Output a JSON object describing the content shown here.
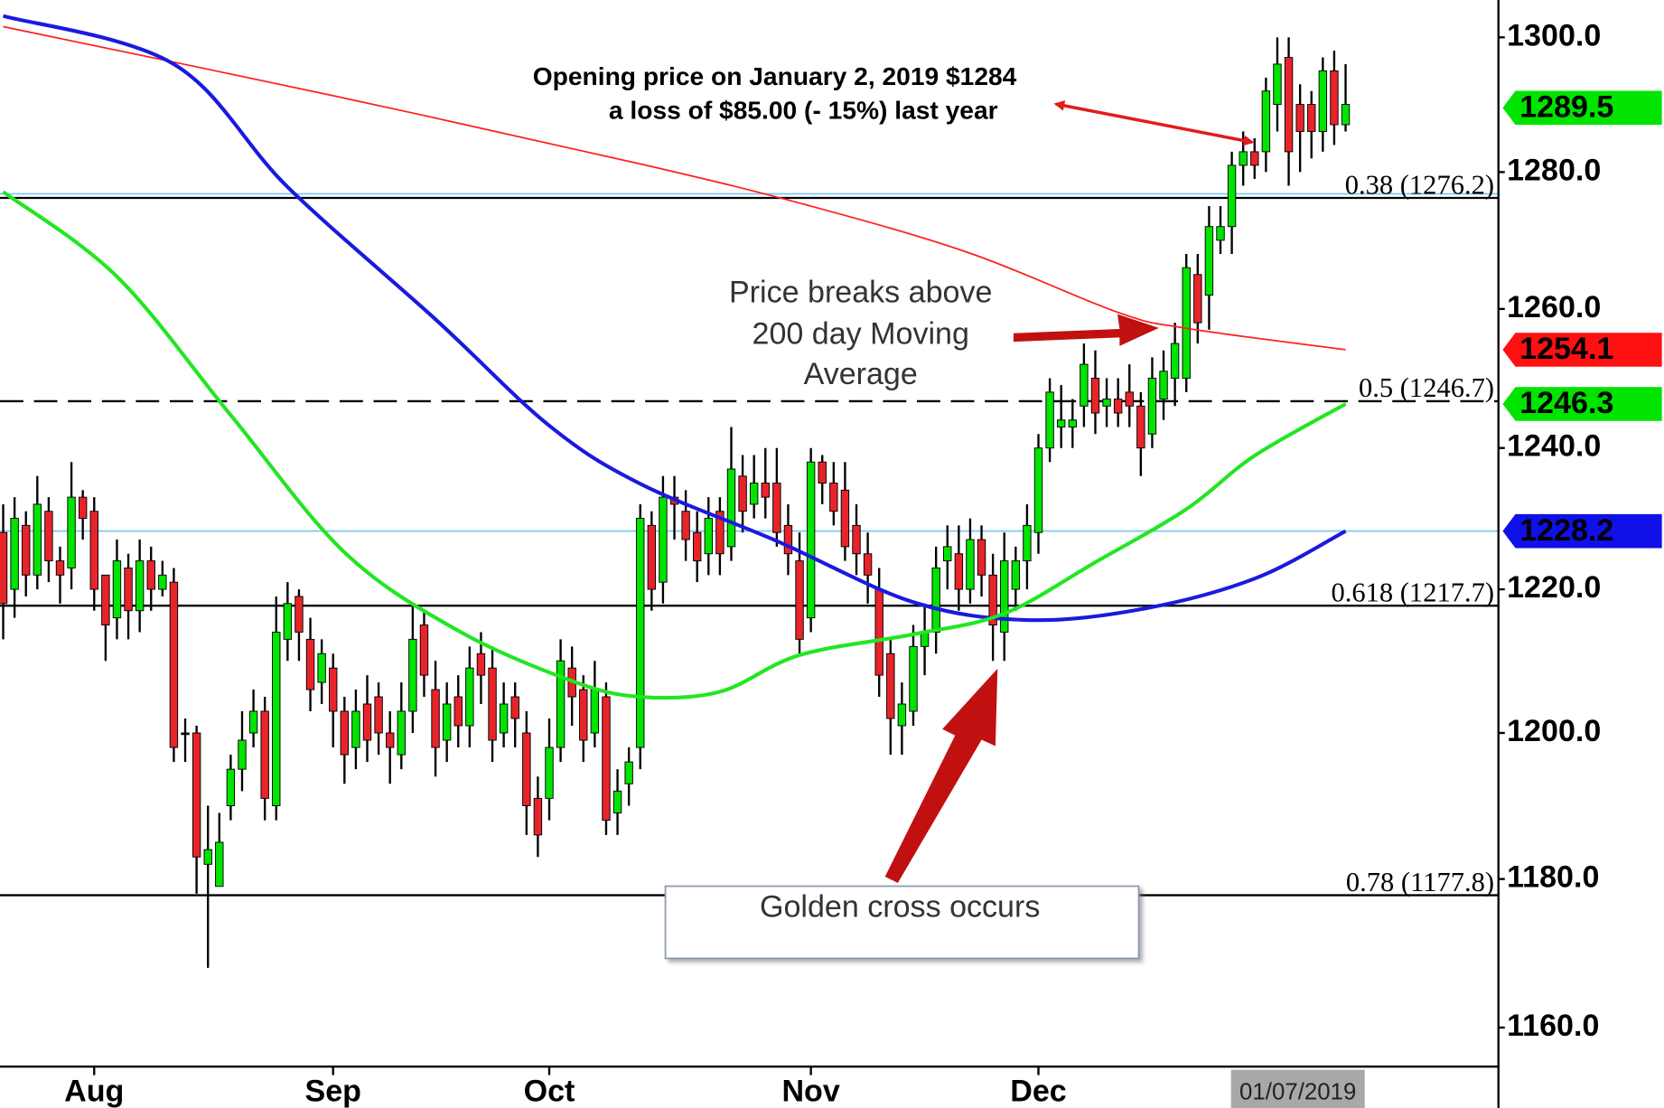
{
  "chart_data": {
    "type": "candlestick",
    "log_scale": true,
    "ylim": [
      1154.8,
      1305.6
    ],
    "yticks": [
      {
        "value": 1160,
        "label": "1160.0"
      },
      {
        "value": 1180,
        "label": "1180.0"
      },
      {
        "value": 1200,
        "label": "1200.0"
      },
      {
        "value": 1220,
        "label": "1220.0"
      },
      {
        "value": 1240,
        "label": "1240.0"
      },
      {
        "value": 1260,
        "label": "1260.0"
      },
      {
        "value": 1280,
        "label": "1280.0"
      },
      {
        "value": 1300,
        "label": "1300.0"
      }
    ],
    "categories": [
      null,
      null,
      null,
      null,
      null,
      null,
      null,
      null,
      "Aug",
      null,
      null,
      null,
      null,
      null,
      null,
      null,
      null,
      null,
      null,
      null,
      null,
      null,
      null,
      null,
      null,
      null,
      null,
      null,
      null,
      "Sep",
      null,
      null,
      null,
      null,
      null,
      null,
      null,
      null,
      null,
      null,
      null,
      null,
      null,
      null,
      null,
      null,
      null,
      null,
      "Oct",
      null,
      null,
      null,
      null,
      null,
      null,
      null,
      null,
      null,
      null,
      null,
      null,
      null,
      null,
      null,
      null,
      null,
      null,
      null,
      null,
      null,
      null,
      "Nov",
      null,
      null,
      null,
      null,
      null,
      null,
      null,
      null,
      null,
      null,
      null,
      null,
      null,
      null,
      null,
      null,
      null,
      null,
      null,
      "Dec",
      null,
      null,
      null,
      null,
      null,
      null,
      null,
      null,
      null,
      null,
      null,
      null,
      null,
      null,
      null,
      null,
      null,
      null,
      null,
      null,
      null,
      null,
      null,
      null,
      null,
      null,
      null
    ],
    "open": [
      1228,
      1220,
      1229,
      1222,
      1231,
      1224,
      1223,
      1233,
      1231,
      1222,
      1216,
      1223,
      1217,
      1224,
      1220,
      1221,
      1200,
      1200,
      1182,
      1179,
      1190,
      1195,
      1200,
      1203,
      1190,
      1213,
      1219,
      1213,
      1207,
      1209,
      1203,
      1198,
      1204,
      1205,
      1200,
      1197,
      1203,
      1215,
      1206,
      1199,
      1205,
      1201,
      1211,
      1209,
      1200,
      1205,
      1200,
      1191,
      1191,
      1198,
      1209,
      1206,
      1200,
      1205,
      1189,
      1193,
      1198,
      1229,
      1221,
      1233,
      1231,
      1228,
      1225,
      1231,
      1226,
      1236,
      1232,
      1235,
      1235,
      1229,
      1224,
      1216,
      1238,
      1235,
      1234,
      1229,
      1225,
      1220,
      1211,
      1201,
      1203,
      1212,
      1214,
      1224,
      1225,
      1220,
      1227,
      1222,
      1214,
      1220,
      1224,
      1228,
      1240,
      1243,
      1243,
      1246,
      1250,
      1246,
      1247,
      1248,
      1246,
      1242,
      1247,
      1250,
      1250,
      1265,
      1262,
      1270,
      1272,
      1281,
      1283,
      1283,
      1290,
      1297,
      1290,
      1290,
      1286,
      1295,
      1287
    ],
    "high": [
      1232,
      1233,
      1231,
      1236,
      1233,
      1226,
      1238,
      1234,
      1233,
      1222,
      1227,
      1225,
      1227,
      1226,
      1224,
      1223,
      1202,
      1201,
      1190,
      1189,
      1197,
      1203,
      1206,
      1205,
      1219,
      1221,
      1220,
      1216,
      1213,
      1211,
      1205,
      1206,
      1208,
      1207,
      1203,
      1207,
      1218,
      1217,
      1210,
      1207,
      1208,
      1212,
      1214,
      1212,
      1207,
      1207,
      1203,
      1194,
      1202,
      1213,
      1212,
      1208,
      1210,
      1207,
      1195,
      1198,
      1232,
      1231,
      1236,
      1236,
      1234,
      1231,
      1233,
      1233,
      1243,
      1239,
      1239,
      1240,
      1240,
      1232,
      1228,
      1240,
      1239,
      1238,
      1238,
      1232,
      1228,
      1223,
      1213,
      1207,
      1215,
      1218,
      1226,
      1229,
      1229,
      1230,
      1229,
      1225,
      1228,
      1226,
      1232,
      1242,
      1250,
      1249,
      1247,
      1255,
      1254,
      1250,
      1250,
      1252,
      1248,
      1253,
      1254,
      1258,
      1268,
      1268,
      1275,
      1275,
      1283,
      1286,
      1285,
      1294,
      1300,
      1300,
      1293,
      1292,
      1297,
      1298,
      1296
    ],
    "low": [
      1213,
      1216,
      1219,
      1220,
      1221,
      1218,
      1220,
      1227,
      1217,
      1210,
      1213,
      1213,
      1214,
      1217,
      1219,
      1196,
      1196,
      1178,
      1168,
      1179,
      1188,
      1192,
      1198,
      1188,
      1188,
      1210,
      1210,
      1203,
      1204,
      1198,
      1193,
      1195,
      1196,
      1197,
      1193,
      1195,
      1200,
      1205,
      1194,
      1196,
      1198,
      1198,
      1204,
      1196,
      1198,
      1198,
      1186,
      1183,
      1188,
      1196,
      1201,
      1196,
      1198,
      1186,
      1186,
      1190,
      1195,
      1217,
      1218,
      1227,
      1224,
      1221,
      1222,
      1222,
      1224,
      1228,
      1230,
      1230,
      1226,
      1222,
      1211,
      1214,
      1232,
      1229,
      1224,
      1222,
      1218,
      1205,
      1197,
      1197,
      1201,
      1208,
      1211,
      1220,
      1217,
      1218,
      1219,
      1210,
      1210,
      1217,
      1220,
      1225,
      1238,
      1240,
      1240,
      1243,
      1242,
      1243,
      1243,
      1243,
      1236,
      1240,
      1244,
      1246,
      1248,
      1255,
      1257,
      1268,
      1268,
      1278,
      1279,
      1280,
      1286,
      1278,
      1280,
      1282,
      1283,
      1284,
      1286
    ],
    "close": [
      1218,
      1230,
      1222,
      1232,
      1224,
      1222,
      1233,
      1230,
      1220,
      1215,
      1224,
      1217,
      1224,
      1220,
      1222,
      1198,
      1200,
      1183,
      1184,
      1185,
      1195,
      1199,
      1203,
      1191,
      1214,
      1218,
      1214,
      1206,
      1211,
      1203,
      1197,
      1203,
      1199,
      1200,
      1198,
      1203,
      1213,
      1208,
      1198,
      1204,
      1201,
      1209,
      1208,
      1199,
      1204,
      1202,
      1190,
      1186,
      1198,
      1210,
      1205,
      1199,
      1206,
      1188,
      1192,
      1196,
      1230,
      1220,
      1233,
      1232,
      1227,
      1224,
      1230,
      1225,
      1237,
      1231,
      1235,
      1233,
      1228,
      1225,
      1213,
      1238,
      1235,
      1231,
      1226,
      1225,
      1222,
      1208,
      1202,
      1204,
      1212,
      1214,
      1223,
      1226,
      1220,
      1227,
      1222,
      1215,
      1224,
      1224,
      1229,
      1240,
      1248,
      1244,
      1244,
      1252,
      1245,
      1247,
      1245,
      1246,
      1240,
      1250,
      1251,
      1255,
      1266,
      1258,
      1272,
      1272,
      1281,
      1283,
      1281,
      1292,
      1296,
      1283,
      1286,
      1286,
      1295,
      1287,
      1290
    ],
    "up_color": "#00e400",
    "down_color": "#e8242b",
    "moving_averages": [
      {
        "color": "#ff2020",
        "x": [
          0,
          29,
          56,
          71,
          85,
          98,
          104,
          118
        ],
        "values": [
          1301.6,
          1291.3,
          1281.2,
          1275,
          1268.1,
          1259.5,
          1257.2,
          1254.1
        ]
      },
      {
        "color": "#1a1adf",
        "x": [
          0,
          15,
          25,
          38,
          48,
          56,
          68,
          80,
          90,
          100,
          110,
          118
        ],
        "values": [
          1303.2,
          1296,
          1277.8,
          1258.5,
          1243.2,
          1234.9,
          1226.8,
          1218.2,
          1215.7,
          1217.2,
          1221.5,
          1228.2
        ]
      },
      {
        "color": "#22e622",
        "x": [
          0,
          10,
          20,
          30,
          40,
          50,
          56,
          63,
          70,
          80,
          88,
          96,
          104,
          110,
          118
        ],
        "values": [
          1277.1,
          1264.7,
          1244.7,
          1225.2,
          1214.2,
          1207.2,
          1205,
          1205.7,
          1210.8,
          1213.7,
          1216.6,
          1223.8,
          1231.3,
          1238.9,
          1246.3
        ]
      }
    ],
    "fib_levels": [
      {
        "label": "0.38 (1276.2)",
        "value": 1276.2,
        "dashed": false
      },
      {
        "label": "0.5 (1246.7)",
        "value": 1246.7,
        "dashed": true
      },
      {
        "label": "0.618 (1217.7)",
        "value": 1217.7,
        "dashed": false
      },
      {
        "label": "0.78 (1177.8)",
        "value": 1177.8,
        "dashed": false
      }
    ],
    "reference_lines": [
      {
        "value": 1276.8,
        "color": "#7ec8f0"
      },
      {
        "value": 1228.2,
        "color": "#7ec8f0"
      }
    ],
    "price_tags": [
      {
        "value": 1289.5,
        "color": "#00e400",
        "text_color": "#000000"
      },
      {
        "value": 1254.1,
        "color": "#ff1010",
        "text_color": "#ffffff"
      },
      {
        "value": 1246.3,
        "color": "#00e400",
        "text_color": "#000000"
      },
      {
        "value": 1228.2,
        "color": "#1010e8",
        "text_color": "#ffffff"
      }
    ],
    "cursor_label": "01/07/2019",
    "annotations": {
      "opening_price": [
        "Opening price on January 2, 2019 $1284",
        "a loss of $85.00 (- 15%)  last year"
      ],
      "breakout": [
        "Price breaks above",
        "200 day Moving",
        "Average"
      ],
      "golden_cross": "Golden cross occurs"
    }
  }
}
